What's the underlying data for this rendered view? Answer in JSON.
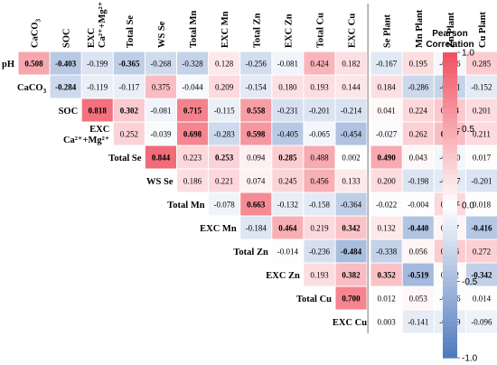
{
  "chart_data": {
    "type": "heatmap",
    "title": "",
    "xlabel": "",
    "ylabel": "",
    "columns": [
      {
        "id": "CaCO3",
        "label": "CaCO",
        "sub": "3"
      },
      {
        "id": "SOC",
        "label": "SOC"
      },
      {
        "id": "EXC",
        "label_line1": "EXC",
        "label_line2": "Ca²⁺+Mg²⁺"
      },
      {
        "id": "TotalSe",
        "label": "Total Se"
      },
      {
        "id": "WSSe",
        "label": "WS Se"
      },
      {
        "id": "TotalMn",
        "label": "Total Mn"
      },
      {
        "id": "EXCMn",
        "label": "EXC Mn"
      },
      {
        "id": "TotalZn",
        "label": "Total Zn"
      },
      {
        "id": "EXCZn",
        "label": "EXC Zn"
      },
      {
        "id": "TotalCu",
        "label": "Total Cu"
      },
      {
        "id": "EXCCu",
        "label": "EXC Cu"
      },
      {
        "id": "SePlant",
        "label": "Se Plant"
      },
      {
        "id": "MnPlant",
        "label": "Mn Plant"
      },
      {
        "id": "ZnPlant",
        "label": "Zn Plant"
      },
      {
        "id": "CuPlant",
        "label": "Cu Plant"
      }
    ],
    "rows": [
      {
        "label": "pH",
        "start": 0,
        "values": [
          0.508,
          -0.403,
          -0.199,
          -0.365,
          -0.268,
          -0.328,
          0.128,
          -0.256,
          -0.081,
          0.424,
          0.182,
          -0.167,
          0.195,
          -0.056,
          0.285
        ],
        "bold": [
          true,
          true,
          false,
          true,
          false,
          false,
          false,
          false,
          false,
          false,
          false,
          false,
          false,
          false,
          false
        ]
      },
      {
        "label": "CaCO",
        "sub": "3",
        "start": 1,
        "values": [
          -0.284,
          -0.119,
          -0.117,
          0.375,
          -0.044,
          0.209,
          -0.154,
          0.18,
          0.193,
          0.144,
          0.184,
          -0.286,
          -0.321,
          -0.152
        ],
        "bold": [
          true,
          false,
          false,
          false,
          false,
          false,
          false,
          false,
          false,
          false,
          false,
          false,
          false,
          false
        ]
      },
      {
        "label": "SOC",
        "start": 2,
        "values": [
          0.818,
          0.302,
          -0.081,
          0.715,
          -0.115,
          0.558,
          -0.231,
          -0.201,
          -0.214,
          0.041,
          0.224,
          0.314,
          0.201
        ],
        "bold": [
          true,
          true,
          false,
          true,
          false,
          true,
          false,
          false,
          false,
          false,
          false,
          false,
          false
        ]
      },
      {
        "label_line1": "EXC",
        "label_line2": "Ca²⁺+Mg²⁺",
        "start": 3,
        "values": [
          0.252,
          -0.039,
          0.698,
          -0.283,
          0.598,
          -0.405,
          -0.065,
          -0.454,
          -0.027,
          0.262,
          0.377,
          0.211
        ],
        "bold": [
          false,
          false,
          true,
          false,
          true,
          false,
          false,
          false,
          false,
          false,
          true,
          false
        ]
      },
      {
        "label": "Total Se",
        "start": 4,
        "values": [
          0.844,
          0.223,
          0.253,
          0.094,
          0.285,
          0.488,
          0.002,
          0.49,
          0.043,
          -0.07,
          0.017
        ],
        "bold": [
          true,
          false,
          true,
          false,
          true,
          false,
          false,
          true,
          false,
          false,
          false
        ]
      },
      {
        "label": "WS Se",
        "start": 5,
        "values": [
          0.186,
          0.221,
          0.074,
          0.245,
          0.456,
          0.133,
          0.2,
          -0.198,
          -0.157,
          -0.201
        ],
        "bold": [
          false,
          false,
          false,
          false,
          false,
          false,
          false,
          false,
          false,
          false
        ]
      },
      {
        "label": "Total Mn",
        "start": 6,
        "values": [
          -0.078,
          0.663,
          -0.132,
          -0.158,
          -0.364,
          -0.022,
          -0.004,
          0.227,
          0.018
        ],
        "bold": [
          false,
          true,
          false,
          false,
          false,
          false,
          false,
          false,
          false
        ]
      },
      {
        "label": "EXC Mn",
        "start": 7,
        "values": [
          -0.184,
          0.464,
          0.219,
          0.342,
          0.132,
          -0.44,
          0.057,
          -0.416
        ],
        "bold": [
          false,
          true,
          false,
          true,
          false,
          true,
          false,
          true
        ]
      },
      {
        "label": "Total Zn",
        "start": 8,
        "values": [
          -0.014,
          -0.236,
          -0.484,
          -0.338,
          0.056,
          0.296,
          0.272
        ],
        "bold": [
          false,
          false,
          true,
          false,
          false,
          false,
          false
        ]
      },
      {
        "label": "EXC Zn",
        "start": 9,
        "values": [
          0.193,
          0.382,
          0.352,
          -0.519,
          0.022,
          -0.342
        ],
        "bold": [
          false,
          true,
          true,
          true,
          false,
          true
        ]
      },
      {
        "label": "Total Cu",
        "start": 10,
        "values": [
          0.7,
          0.012,
          0.053,
          -0.026,
          0.014
        ],
        "bold": [
          true,
          false,
          false,
          false,
          false
        ]
      },
      {
        "label": "EXC Cu",
        "start": 11,
        "values": [
          0.003,
          -0.141,
          -0.129,
          -0.096
        ],
        "bold": [
          false,
          false,
          false,
          false
        ]
      }
    ],
    "color_scale": {
      "min": -1.0,
      "max": 1.0,
      "neg_color": "#4e79bd",
      "zero_color": "#ffffff",
      "pos_color": "#f0505f"
    },
    "legend": {
      "title_line1": "Pearson",
      "title_line2": "Correlation",
      "ticks": [
        "1.0",
        "0.5",
        "0.0",
        "-0.5",
        "-1.0"
      ],
      "tick_values": [
        1.0,
        0.5,
        0.0,
        -0.5,
        -1.0
      ],
      "placement": "right"
    }
  }
}
